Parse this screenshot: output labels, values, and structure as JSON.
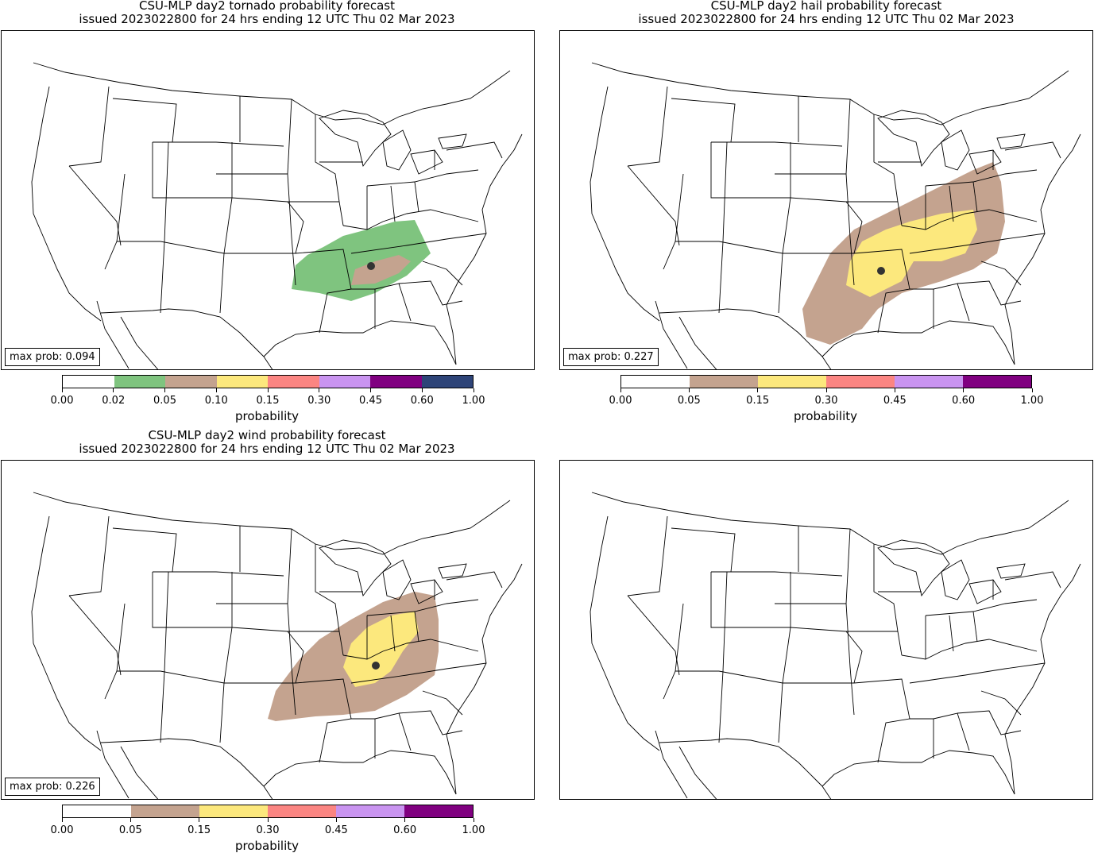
{
  "panels": {
    "tornado": {
      "title_line1": "CSU-MLP day2 tornado probability forecast",
      "title_line2": "issued 2023022800 for 24 hrs ending 12 UTC Thu 02 Mar 2023",
      "max_prob_label": "max prob: 0.094",
      "colorbar": {
        "ticks": [
          "0.00",
          "0.02",
          "0.05",
          "0.10",
          "0.15",
          "0.30",
          "0.45",
          "0.60",
          "1.00"
        ],
        "colors": [
          "#ffffff",
          "#7fc47f",
          "#c4a38f",
          "#fce87d",
          "#fb8582",
          "#c994f0",
          "#800080",
          "#2e4478"
        ],
        "label": "probability"
      }
    },
    "hail": {
      "title_line1": "CSU-MLP day2 hail probability forecast",
      "title_line2": "issued 2023022800 for 24 hrs ending 12 UTC Thu 02 Mar 2023",
      "max_prob_label": "max prob: 0.227",
      "colorbar": {
        "ticks": [
          "0.00",
          "0.05",
          "0.15",
          "0.30",
          "0.45",
          "0.60",
          "1.00"
        ],
        "colors": [
          "#ffffff",
          "#c4a38f",
          "#fce87d",
          "#fb8582",
          "#c994f0",
          "#800080"
        ],
        "label": "probability"
      }
    },
    "wind": {
      "title_line1": "CSU-MLP day2 wind probability forecast",
      "title_line2": "issued 2023022800 for 24 hrs ending 12 UTC Thu 02 Mar 2023",
      "max_prob_label": "max prob: 0.226",
      "colorbar": {
        "ticks": [
          "0.00",
          "0.05",
          "0.15",
          "0.30",
          "0.45",
          "0.60",
          "1.00"
        ],
        "colors": [
          "#ffffff",
          "#c4a38f",
          "#fce87d",
          "#fb8582",
          "#c994f0",
          "#800080"
        ],
        "label": "probability"
      }
    }
  },
  "chart_data": [
    {
      "type": "heatmap",
      "title": "CSU-MLP day2 tornado probability forecast",
      "max_prob": 0.094,
      "levels": [
        0,
        0.02,
        0.05,
        0.1,
        0.15,
        0.3,
        0.45,
        0.6,
        1.0
      ]
    },
    {
      "type": "heatmap",
      "title": "CSU-MLP day2 hail probability forecast",
      "max_prob": 0.227,
      "levels": [
        0,
        0.05,
        0.15,
        0.3,
        0.45,
        0.6,
        1.0
      ]
    },
    {
      "type": "heatmap",
      "title": "CSU-MLP day2 wind probability forecast",
      "max_prob": 0.226,
      "levels": [
        0,
        0.05,
        0.15,
        0.3,
        0.45,
        0.6,
        1.0
      ]
    },
    {
      "type": "heatmap",
      "title": "",
      "note": "empty basemap panel"
    }
  ]
}
